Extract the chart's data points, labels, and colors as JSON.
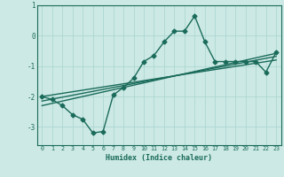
{
  "title": "",
  "xlabel": "Humidex (Indice chaleur)",
  "ylabel": "",
  "x": [
    0,
    1,
    2,
    3,
    4,
    5,
    6,
    7,
    8,
    9,
    10,
    11,
    12,
    13,
    14,
    15,
    16,
    17,
    18,
    19,
    20,
    21,
    22,
    23
  ],
  "line1": [
    -2.0,
    -2.1,
    -2.3,
    -2.6,
    -2.75,
    -3.2,
    -3.15,
    -1.95,
    -1.7,
    -1.4,
    -0.85,
    -0.65,
    -0.2,
    0.15,
    0.15,
    0.65,
    -0.2,
    -0.85,
    -0.85,
    -0.85,
    -0.85,
    -0.85,
    -1.2,
    -0.55
  ],
  "line2_x": [
    0,
    23
  ],
  "line2_y": [
    -2.0,
    -0.8
  ],
  "line3_x": [
    0,
    23
  ],
  "line3_y": [
    -2.15,
    -0.68
  ],
  "line4_x": [
    0,
    23
  ],
  "line4_y": [
    -2.3,
    -0.58
  ],
  "xlim": [
    -0.5,
    23.5
  ],
  "ylim": [
    -3.6,
    0.85
  ],
  "yticks": [
    1,
    0,
    -1,
    -2,
    -3
  ],
  "xticks": [
    0,
    1,
    2,
    3,
    4,
    5,
    6,
    7,
    8,
    9,
    10,
    11,
    12,
    13,
    14,
    15,
    16,
    17,
    18,
    19,
    20,
    21,
    22,
    23
  ],
  "line_color": "#1a6b5a",
  "bg_color": "#cce9e5",
  "grid_color": "#a8d4cf",
  "marker": "D",
  "markersize": 2.5,
  "linewidth": 1.0
}
